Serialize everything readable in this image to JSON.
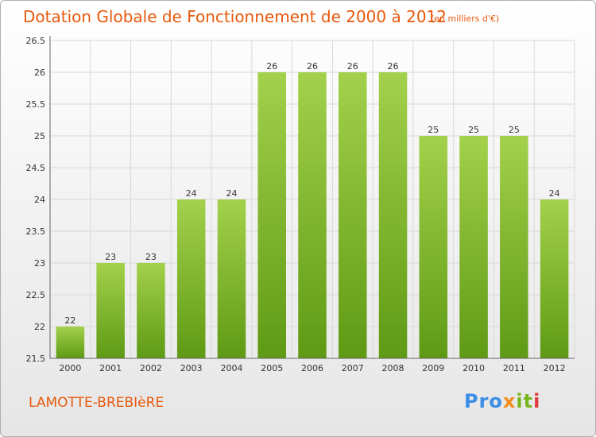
{
  "header": {
    "title": "Dotation Globale de Fonctionnement de 2000 à 2012",
    "subtitle": "(en milliers d'€)"
  },
  "footer": {
    "town": "LAMOTTE-BREBIèRE",
    "logo": "Proxiti"
  },
  "colors": {
    "title": "#e8590c",
    "bar_top": "#a3d14b",
    "bar_bottom": "#5f9a14",
    "grid": "#d8d8d8"
  },
  "chart_data": {
    "type": "bar",
    "title": "Dotation Globale de Fonctionnement de 2000 à 2012",
    "subtitle": "(en milliers d'€)",
    "xlabel": "",
    "ylabel": "",
    "categories": [
      "2000",
      "2001",
      "2002",
      "2003",
      "2004",
      "2005",
      "2006",
      "2007",
      "2008",
      "2009",
      "2010",
      "2011",
      "2012"
    ],
    "values": [
      22,
      23,
      23,
      24,
      24,
      26,
      26,
      26,
      26,
      25,
      25,
      25,
      24
    ],
    "data_labels": [
      "22",
      "23",
      "23",
      "24",
      "24",
      "26",
      "26",
      "26",
      "26",
      "25",
      "25",
      "25",
      "24"
    ],
    "ylim": [
      21.5,
      26.5
    ],
    "yticks": [
      "21.5",
      "22",
      "22.5",
      "23",
      "23.5",
      "24",
      "24.5",
      "25",
      "25.5",
      "26",
      "26.5"
    ],
    "grid": true,
    "legend": "none"
  }
}
